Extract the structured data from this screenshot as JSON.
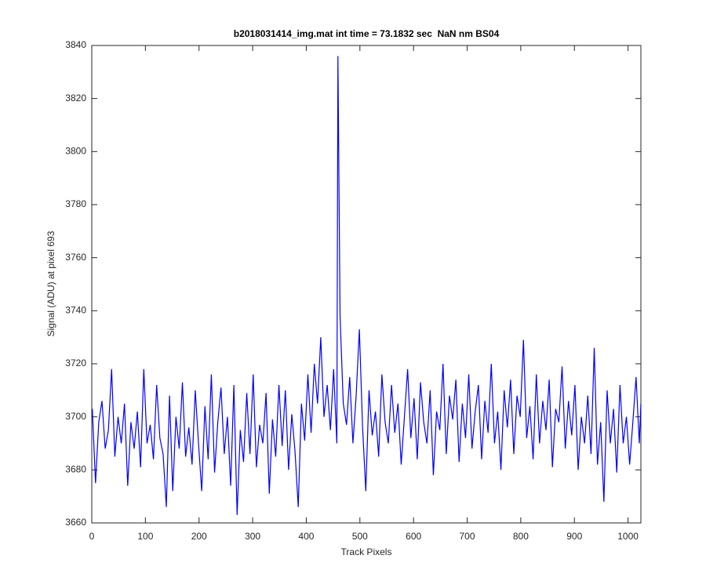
{
  "chart_data": {
    "type": "line",
    "title": "b2018031414_img.mat int time = 73.1832 sec  NaN nm BS04",
    "x_label": "Track Pixels",
    "y_label": "Signal (ADU) at pixel 693",
    "x": [
      1,
      7,
      13,
      19,
      25,
      31,
      37,
      43,
      49,
      55,
      61,
      67,
      73,
      79,
      85,
      91,
      97,
      103,
      109,
      115,
      121,
      127,
      133,
      139,
      145,
      151,
      157,
      163,
      169,
      175,
      181,
      187,
      193,
      199,
      205,
      211,
      217,
      223,
      229,
      235,
      241,
      247,
      253,
      259,
      265,
      271,
      277,
      283,
      289,
      295,
      301,
      307,
      313,
      319,
      325,
      331,
      337,
      343,
      349,
      355,
      361,
      367,
      373,
      379,
      385,
      391,
      397,
      403,
      409,
      415,
      421,
      427,
      433,
      439,
      445,
      451,
      457,
      459,
      463,
      469,
      475,
      481,
      487,
      493,
      499,
      505,
      511,
      517,
      523,
      529,
      535,
      541,
      547,
      553,
      559,
      565,
      571,
      577,
      583,
      589,
      595,
      601,
      607,
      613,
      619,
      625,
      631,
      637,
      643,
      649,
      655,
      661,
      667,
      673,
      679,
      685,
      691,
      697,
      703,
      709,
      715,
      721,
      727,
      733,
      739,
      745,
      751,
      757,
      763,
      769,
      775,
      781,
      787,
      793,
      799,
      805,
      811,
      817,
      823,
      829,
      835,
      841,
      847,
      853,
      859,
      865,
      871,
      877,
      883,
      889,
      895,
      901,
      907,
      913,
      919,
      925,
      931,
      937,
      943,
      949,
      955,
      961,
      967,
      973,
      979,
      985,
      991,
      997,
      1003,
      1009,
      1015,
      1021,
      1024
    ],
    "series": [
      {
        "name": "signal",
        "color": "#0000ff",
        "values": [
          3703,
          3675,
          3698,
          3706,
          3688,
          3695,
          3718,
          3685,
          3700,
          3690,
          3705,
          3674,
          3698,
          3688,
          3702,
          3681,
          3718,
          3690,
          3697,
          3684,
          3712,
          3692,
          3686,
          3666,
          3708,
          3672,
          3700,
          3688,
          3713,
          3685,
          3696,
          3682,
          3710,
          3690,
          3672,
          3704,
          3684,
          3716,
          3679,
          3698,
          3711,
          3686,
          3700,
          3674,
          3712,
          3663,
          3695,
          3683,
          3709,
          3686,
          3716,
          3681,
          3697,
          3690,
          3709,
          3671,
          3699,
          3685,
          3712,
          3689,
          3710,
          3680,
          3701,
          3687,
          3666,
          3705,
          3691,
          3716,
          3694,
          3720,
          3705,
          3730,
          3700,
          3712,
          3695,
          3718,
          3690,
          3836,
          3738,
          3705,
          3697,
          3715,
          3690,
          3708,
          3733,
          3696,
          3672,
          3710,
          3693,
          3702,
          3685,
          3716,
          3698,
          3690,
          3712,
          3694,
          3705,
          3682,
          3700,
          3718,
          3692,
          3707,
          3684,
          3713,
          3698,
          3690,
          3710,
          3678,
          3702,
          3695,
          3720,
          3686,
          3708,
          3699,
          3714,
          3683,
          3705,
          3692,
          3716,
          3688,
          3702,
          3712,
          3684,
          3706,
          3694,
          3720,
          3690,
          3702,
          3680,
          3710,
          3696,
          3714,
          3686,
          3708,
          3700,
          3729,
          3692,
          3704,
          3684,
          3716,
          3690,
          3706,
          3695,
          3714,
          3681,
          3703,
          3698,
          3719,
          3688,
          3706,
          3693,
          3712,
          3680,
          3700,
          3690,
          3708,
          3686,
          3726,
          3682,
          3698,
          3668,
          3710,
          3690,
          3703,
          3679,
          3712,
          3690,
          3700,
          3682,
          3698,
          3715,
          3690,
          3705
        ]
      }
    ],
    "xlim": [
      0,
      1024
    ],
    "ylim": [
      3660,
      3840
    ],
    "xticks": [
      0,
      100,
      200,
      300,
      400,
      500,
      600,
      700,
      800,
      900,
      1000
    ],
    "yticks": [
      3660,
      3680,
      3700,
      3720,
      3740,
      3760,
      3780,
      3800,
      3820,
      3840
    ]
  }
}
